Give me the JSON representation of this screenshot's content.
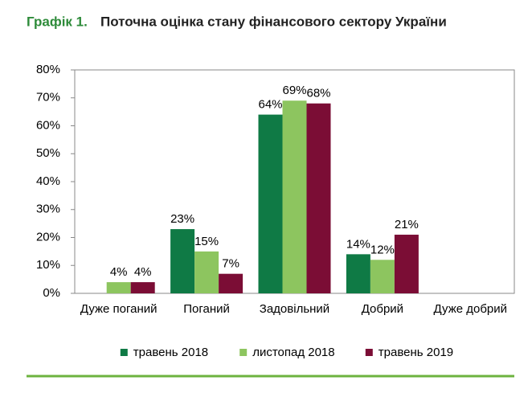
{
  "chart_data": {
    "type": "bar",
    "title_label": "Графік 1.",
    "title": "Поточна оцінка стану фінансового сектору України",
    "categories": [
      "Дуже поганий",
      "Поганий",
      "Задовільний",
      "Добрий",
      "Дуже добрий"
    ],
    "series": [
      {
        "name": "травень 2018",
        "color": "#0f7a45",
        "values": [
          null,
          23,
          64,
          14,
          null
        ],
        "value_labels": [
          null,
          "23%",
          "64%",
          "14%",
          null
        ]
      },
      {
        "name": "листопад 2018",
        "color": "#8dc55f",
        "values": [
          4,
          15,
          69,
          12,
          null
        ],
        "value_labels": [
          "4%",
          "15%",
          "69%",
          "12%",
          null
        ]
      },
      {
        "name": "травень 2019",
        "color": "#7b0d35",
        "values": [
          4,
          7,
          68,
          21,
          null
        ],
        "value_labels": [
          "4%",
          "7%",
          "68%",
          "21%",
          null
        ]
      }
    ],
    "ylim": [
      0,
      80
    ],
    "yticks": [
      {
        "value": 0,
        "label": "0%"
      },
      {
        "value": 10,
        "label": "10%"
      },
      {
        "value": 20,
        "label": "20%"
      },
      {
        "value": 30,
        "label": "30%"
      },
      {
        "value": 40,
        "label": "40%"
      },
      {
        "value": 50,
        "label": "50%"
      },
      {
        "value": 60,
        "label": "60%"
      },
      {
        "value": 70,
        "label": "70%"
      },
      {
        "value": 80,
        "label": "80%"
      }
    ],
    "legend": "bottom"
  }
}
